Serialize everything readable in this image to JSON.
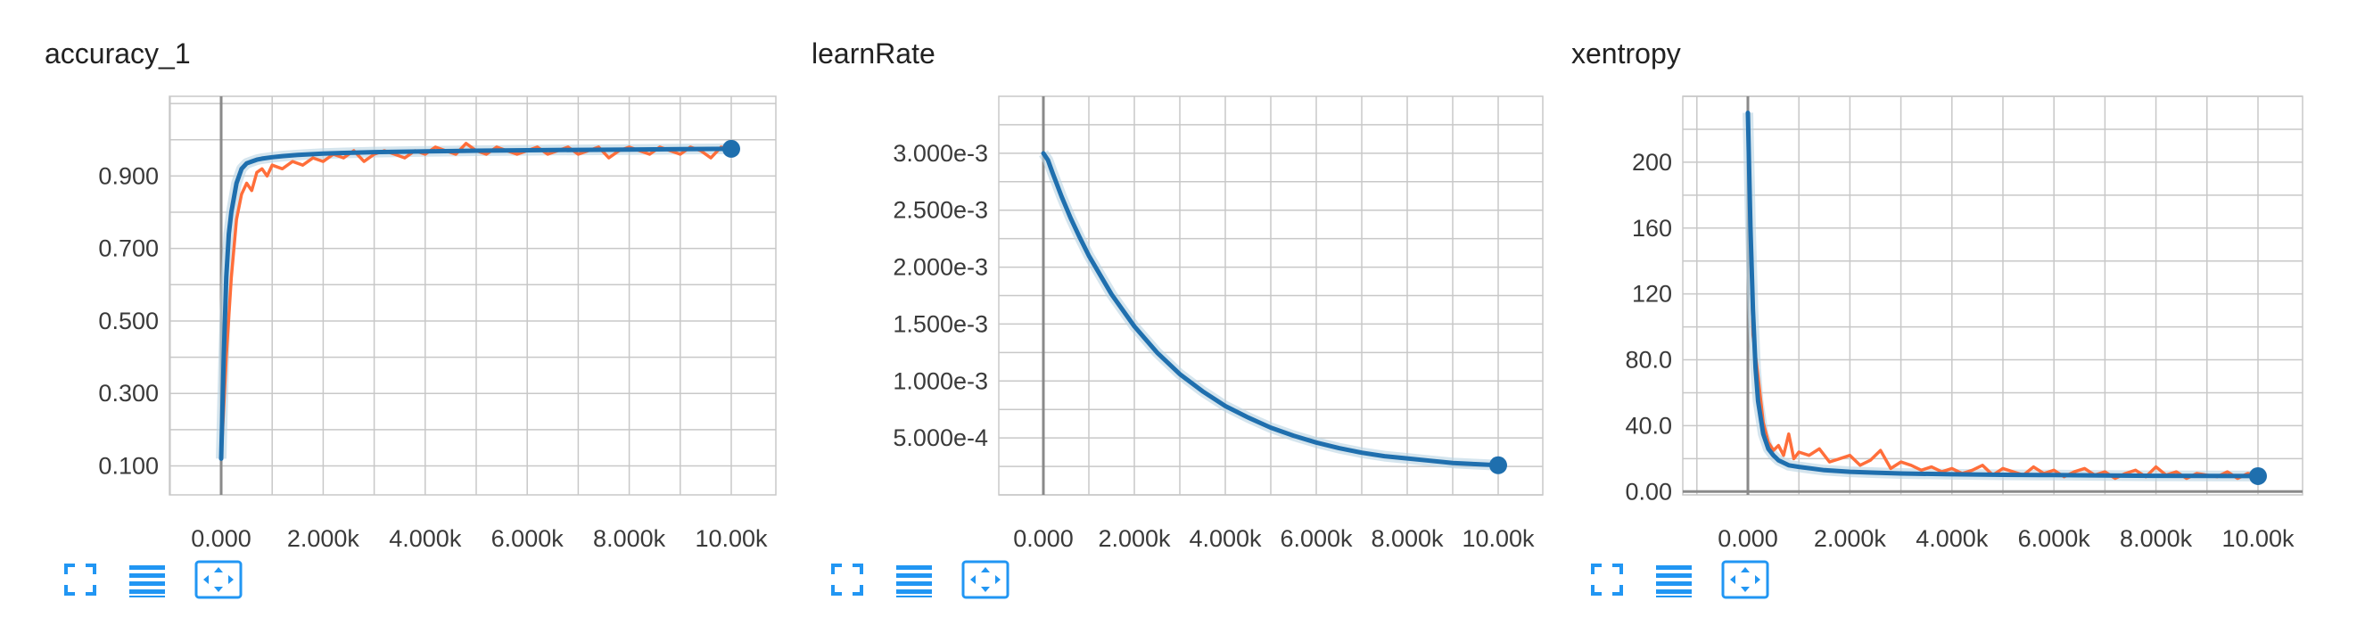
{
  "colors": {
    "smoothed": "#1f6fae",
    "raw": "#ff6e3a",
    "shadow": "#b9d3e2",
    "icon": "#2196f3"
  },
  "icons": [
    "fullscreen-icon",
    "lines-icon",
    "fit-domain-icon"
  ],
  "chart_data": [
    {
      "type": "line",
      "title": "accuracy_1",
      "xlim": [
        0,
        10000
      ],
      "ylim": [
        0.02,
        1.12
      ],
      "x_ticks": [
        0,
        2000,
        4000,
        6000,
        8000,
        10000
      ],
      "x_tick_labels": [
        "0.000",
        "2.000k",
        "4.000k",
        "6.000k",
        "8.000k",
        "10.00k"
      ],
      "y_ticks": [
        0.1,
        0.3,
        0.5,
        0.7,
        0.9
      ],
      "y_tick_labels": [
        "0.100",
        "0.300",
        "0.500",
        "0.700",
        "0.900"
      ],
      "series": [
        {
          "role": "smoothed",
          "x": [
            0,
            50,
            100,
            150,
            200,
            300,
            400,
            500,
            600,
            700,
            800,
            1000,
            1200,
            1500,
            2000,
            2500,
            3000,
            4000,
            5000,
            6000,
            7000,
            8000,
            9000,
            10000
          ],
          "y": [
            0.12,
            0.4,
            0.62,
            0.74,
            0.8,
            0.88,
            0.92,
            0.935,
            0.94,
            0.945,
            0.948,
            0.952,
            0.955,
            0.958,
            0.962,
            0.964,
            0.966,
            0.968,
            0.97,
            0.971,
            0.972,
            0.973,
            0.974,
            0.975
          ]
        },
        {
          "role": "raw",
          "x": [
            0,
            100,
            200,
            300,
            400,
            500,
            600,
            700,
            800,
            900,
            1000,
            1200,
            1400,
            1600,
            1800,
            2000,
            2200,
            2400,
            2600,
            2800,
            3000,
            3200,
            3400,
            3600,
            3800,
            4000,
            4200,
            4400,
            4600,
            4800,
            5000,
            5200,
            5400,
            5600,
            5800,
            6000,
            6200,
            6400,
            6600,
            6800,
            7000,
            7200,
            7400,
            7600,
            7800,
            8000,
            8200,
            8400,
            8600,
            8800,
            9000,
            9200,
            9400,
            9600,
            9800,
            10000
          ],
          "y": [
            0.12,
            0.4,
            0.62,
            0.78,
            0.85,
            0.88,
            0.86,
            0.91,
            0.92,
            0.9,
            0.93,
            0.92,
            0.94,
            0.93,
            0.95,
            0.94,
            0.96,
            0.95,
            0.97,
            0.94,
            0.96,
            0.97,
            0.96,
            0.95,
            0.97,
            0.96,
            0.98,
            0.97,
            0.96,
            0.99,
            0.97,
            0.96,
            0.98,
            0.97,
            0.96,
            0.97,
            0.98,
            0.96,
            0.97,
            0.98,
            0.96,
            0.97,
            0.98,
            0.95,
            0.97,
            0.98,
            0.97,
            0.96,
            0.98,
            0.97,
            0.96,
            0.98,
            0.97,
            0.95,
            0.98,
            0.97
          ]
        }
      ]
    },
    {
      "type": "line",
      "title": "learnRate",
      "xlim": [
        0,
        10000
      ],
      "ylim": [
        0.0,
        0.0035
      ],
      "x_ticks": [
        0,
        2000,
        4000,
        6000,
        8000,
        10000
      ],
      "x_tick_labels": [
        "0.000",
        "2.000k",
        "4.000k",
        "6.000k",
        "8.000k",
        "10.00k"
      ],
      "y_ticks": [
        0.0005,
        0.001,
        0.0015,
        0.002,
        0.0025,
        0.003
      ],
      "y_tick_labels": [
        "5.000e-4",
        "1.000e-3",
        "1.500e-3",
        "2.000e-3",
        "2.500e-3",
        "3.000e-3"
      ],
      "series": [
        {
          "role": "smoothed",
          "x": [
            0,
            100,
            200,
            400,
            600,
            800,
            1000,
            1500,
            2000,
            2500,
            3000,
            3500,
            4000,
            4500,
            5000,
            5500,
            6000,
            6500,
            7000,
            7500,
            8000,
            8500,
            9000,
            9500,
            10000
          ],
          "y": [
            0.003,
            0.00294,
            0.00283,
            0.00262,
            0.00243,
            0.00226,
            0.0021,
            0.00176,
            0.00148,
            0.00125,
            0.00106,
            0.00091,
            0.00078,
            0.00068,
            0.00059,
            0.00052,
            0.00046,
            0.00041,
            0.00037,
            0.00034,
            0.00032,
            0.0003,
            0.00028,
            0.00027,
            0.00026
          ]
        }
      ]
    },
    {
      "type": "line",
      "title": "xentropy",
      "xlim": [
        0,
        10000
      ],
      "ylim": [
        -2,
        240
      ],
      "x_ticks": [
        0,
        2000,
        4000,
        6000,
        8000,
        10000
      ],
      "x_tick_labels": [
        "0.000",
        "2.000k",
        "4.000k",
        "6.000k",
        "8.000k",
        "10.00k"
      ],
      "y_ticks": [
        0,
        40,
        80,
        120,
        160,
        200
      ],
      "y_tick_labels": [
        "0.00",
        "40.0",
        "80.0",
        "120",
        "160",
        "200"
      ],
      "series": [
        {
          "role": "smoothed",
          "x": [
            0,
            50,
            100,
            150,
            200,
            300,
            400,
            500,
            600,
            800,
            1000,
            1500,
            2000,
            2500,
            3000,
            4000,
            5000,
            6000,
            7000,
            8000,
            9000,
            10000
          ],
          "y": [
            230,
            160,
            110,
            75,
            55,
            35,
            26,
            22,
            19,
            16,
            15,
            13,
            12,
            11.5,
            11,
            10.5,
            10.2,
            10,
            9.8,
            9.6,
            9.5,
            9.4
          ]
        },
        {
          "role": "raw",
          "x": [
            0,
            100,
            200,
            300,
            400,
            500,
            600,
            700,
            800,
            900,
            1000,
            1200,
            1400,
            1600,
            1800,
            2000,
            2200,
            2400,
            2600,
            2800,
            3000,
            3200,
            3400,
            3600,
            3800,
            4000,
            4200,
            4400,
            4600,
            4800,
            5000,
            5200,
            5400,
            5600,
            5800,
            6000,
            6200,
            6400,
            6600,
            6800,
            7000,
            7200,
            7400,
            7600,
            7800,
            8000,
            8200,
            8400,
            8600,
            8800,
            9000,
            9200,
            9400,
            9600,
            9800,
            10000
          ],
          "y": [
            230,
            95,
            70,
            42,
            30,
            25,
            28,
            22,
            35,
            20,
            24,
            22,
            26,
            18,
            20,
            22,
            16,
            19,
            25,
            14,
            18,
            16,
            13,
            15,
            12,
            14,
            11,
            13,
            16,
            10,
            14,
            12,
            10,
            15,
            11,
            13,
            9,
            12,
            14,
            10,
            12,
            8,
            11,
            13,
            9,
            15,
            10,
            12,
            8,
            11,
            10,
            9,
            12,
            8,
            11,
            10
          ]
        }
      ]
    }
  ]
}
